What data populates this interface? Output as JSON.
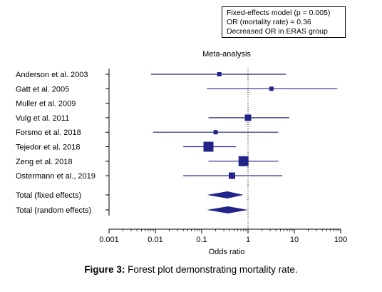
{
  "annotation": {
    "line1": "Fixed-effects model (p = 0.005)",
    "line2": "OR (mortality rate) = 0.36",
    "line3": "Decreased OR in ERAS group"
  },
  "caption": {
    "label": "Figure 3:",
    "text": " Forest plot demonstrating mortality rate."
  },
  "colors": {
    "marker": "#22248a",
    "axis": "#000000",
    "reference_line": "#000000"
  },
  "chart_data": {
    "type": "forest",
    "title": "Meta-analysis",
    "xlabel": "Odds ratio",
    "x_scale": "log",
    "xlim": [
      0.001,
      100
    ],
    "x_ticks": [
      0.001,
      0.01,
      0.1,
      1,
      10,
      100
    ],
    "x_tick_labels": [
      "0.001",
      "0.01",
      "0.1",
      "1",
      "10",
      "100"
    ],
    "reference_line": 1,
    "studies": [
      {
        "label": "Anderson et al. 2003",
        "or": 0.24,
        "ci_low": 0.008,
        "ci_high": 6.6,
        "weight": "small"
      },
      {
        "label": "Gatt et al. 2005",
        "or": 3.2,
        "ci_low": 0.13,
        "ci_high": 85,
        "weight": "small"
      },
      {
        "label": "Muller et al. 2009",
        "or": null,
        "ci_low": null,
        "ci_high": null,
        "weight": "none"
      },
      {
        "label": "Vulg et al. 2011",
        "or": 1.0,
        "ci_low": 0.14,
        "ci_high": 7.8,
        "weight": "medium"
      },
      {
        "label": "Forsmo et al. 2018",
        "or": 0.2,
        "ci_low": 0.009,
        "ci_high": 4.5,
        "weight": "small"
      },
      {
        "label": "Tejedor et al. 2018",
        "or": 0.14,
        "ci_low": 0.04,
        "ci_high": 0.55,
        "weight": "large"
      },
      {
        "label": "Zeng et al. 2018",
        "or": 0.8,
        "ci_low": 0.14,
        "ci_high": 4.5,
        "weight": "large"
      },
      {
        "label": "Ostermann et al., 2019",
        "or": 0.45,
        "ci_low": 0.04,
        "ci_high": 5.5,
        "weight": "medium"
      }
    ],
    "totals": [
      {
        "label": "Total (fixed effects)",
        "or": 0.36,
        "ci_low": 0.13,
        "ci_high": 0.8
      },
      {
        "label": "Total (random effects)",
        "or": 0.37,
        "ci_low": 0.13,
        "ci_high": 1.0
      }
    ]
  }
}
